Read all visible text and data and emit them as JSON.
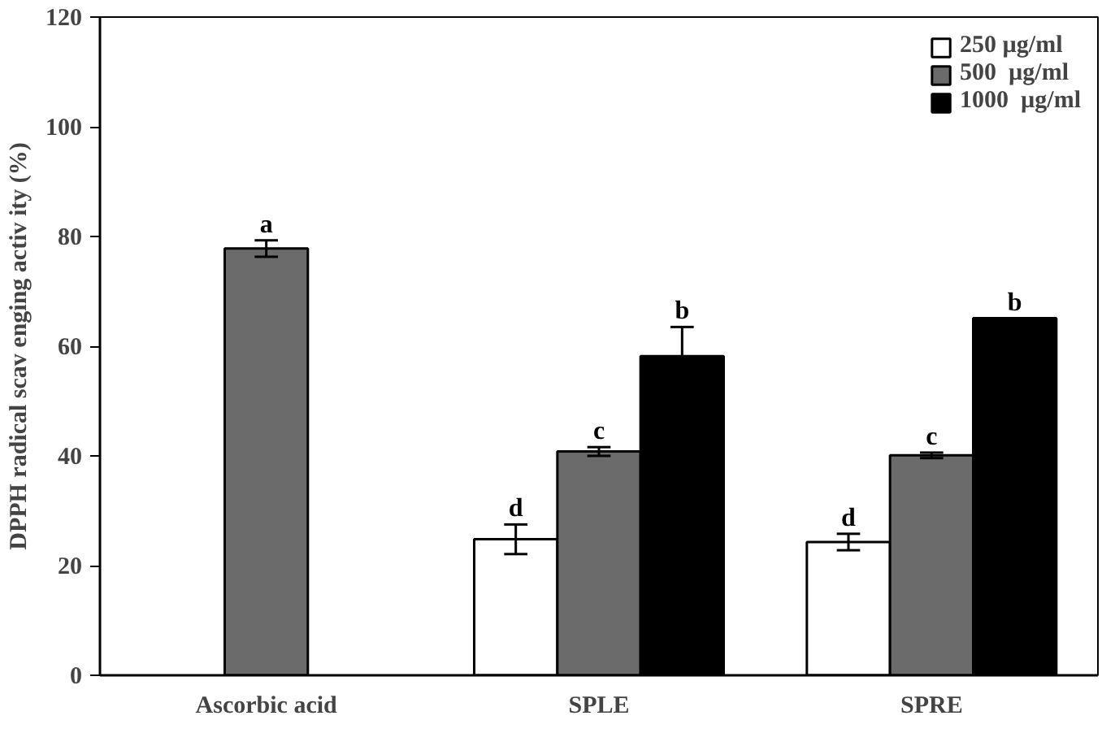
{
  "chart_data": {
    "type": "bar",
    "ylabel": "DPPH radical scav enging activ ity (%)",
    "categories": [
      "Ascorbic acid",
      "SPLE",
      "SPRE"
    ],
    "series": [
      {
        "name": "250 µg/ml",
        "color": "#ffffff",
        "values": [
          null,
          24.8,
          24.3
        ],
        "errors": [
          null,
          2.7,
          1.5
        ],
        "value_labels": [
          null,
          "d",
          "d"
        ]
      },
      {
        "name": "500  µg/ml",
        "color": "#6b6b6b",
        "values": [
          77.8,
          40.8,
          40.1
        ],
        "errors": [
          1.5,
          0.8,
          0.5
        ],
        "value_labels": [
          "a",
          "c",
          "c"
        ]
      },
      {
        "name": "1000  µg/ml",
        "color": "#000000",
        "values": [
          null,
          58.2,
          65.1
        ],
        "errors": [
          null,
          5.3,
          null
        ],
        "value_labels": [
          null,
          "b",
          "b"
        ]
      }
    ],
    "ylim": [
      0,
      120
    ],
    "yticks": [
      0,
      20,
      40,
      60,
      80,
      100,
      120
    ],
    "grid": false,
    "legend": "top right"
  }
}
